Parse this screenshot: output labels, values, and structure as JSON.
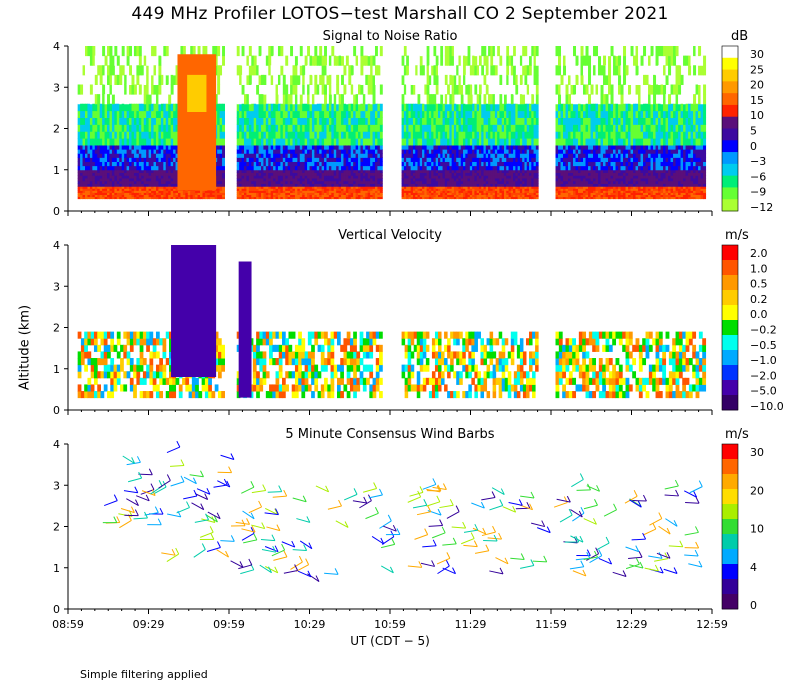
{
  "header": {
    "title": "449 MHz Profiler LOTOS−test Marshall CO  2 September 2021",
    "note": "Simple filtering applied"
  },
  "chart_data": [
    {
      "type": "heatmap",
      "title": "Signal to Noise Ratio",
      "unit": "dB",
      "ylabel": "Altitude (km)",
      "xlabel": "UT  (CDT − 5)",
      "ylim": [
        0,
        4
      ],
      "yticks": [
        "0",
        "1",
        "2",
        "3",
        "4"
      ],
      "xticks": [
        "08:59",
        "09:29",
        "09:59",
        "10:29",
        "10:59",
        "11:29",
        "11:59",
        "12:29",
        "12:59"
      ],
      "colorbar": {
        "labels": [
          "30",
          "25",
          "20",
          "15",
          "10",
          "5",
          "0",
          "−3",
          "−6",
          "−9",
          "−12"
        ],
        "colors": [
          "#ffffff",
          "#ffff00",
          "#ffcc00",
          "#ff9900",
          "#ff6600",
          "#ff2200",
          "#5a0f7a",
          "#3c0aa0",
          "#0000ff",
          "#0099ff",
          "#00ccee",
          "#00ee77",
          "#66ff33",
          "#aaff33"
        ]
      },
      "description_layers": [
        {
          "from_km": 0.3,
          "to_km": 0.6,
          "band": "10 to 15"
        },
        {
          "from_km": 0.6,
          "to_km": 1.0,
          "band": "0 to 5"
        },
        {
          "from_km": 1.0,
          "to_km": 1.6,
          "band": "−3 to 0"
        },
        {
          "from_km": 1.6,
          "to_km": 4.0,
          "band": "−12 to −6"
        }
      ]
    },
    {
      "type": "heatmap",
      "title": "Vertical Velocity",
      "unit": "m/s",
      "ylim": [
        0,
        4
      ],
      "yticks": [
        "0",
        "1",
        "2",
        "3",
        "4"
      ],
      "colorbar": {
        "labels": [
          "2.0",
          "1.0",
          "0.5",
          "0.2",
          "0.0",
          "−0.2",
          "−0.5",
          "−1.0",
          "−2.0",
          "−5.0",
          "−10.0"
        ],
        "colors": [
          "#ff0000",
          "#ff5500",
          "#ff9900",
          "#ffcc00",
          "#ffff00",
          "#00dd00",
          "#00ffee",
          "#00aaff",
          "#0033ff",
          "#4400aa",
          "#330066"
        ]
      }
    },
    {
      "type": "scatter",
      "title": "5 Minute Consensus Wind Barbs",
      "unit": "m/s",
      "ylim": [
        0,
        4
      ],
      "yticks": [
        "0",
        "1",
        "2",
        "3",
        "4"
      ],
      "colorbar": {
        "labels": [
          "30",
          "20",
          "10",
          "4",
          "0"
        ],
        "colors": [
          "#ff0000",
          "#ff6600",
          "#ffaa00",
          "#ffdd00",
          "#aaee00",
          "#33dd33",
          "#00ccaa",
          "#00aaff",
          "#0000ff",
          "#330099",
          "#440066"
        ]
      }
    }
  ]
}
